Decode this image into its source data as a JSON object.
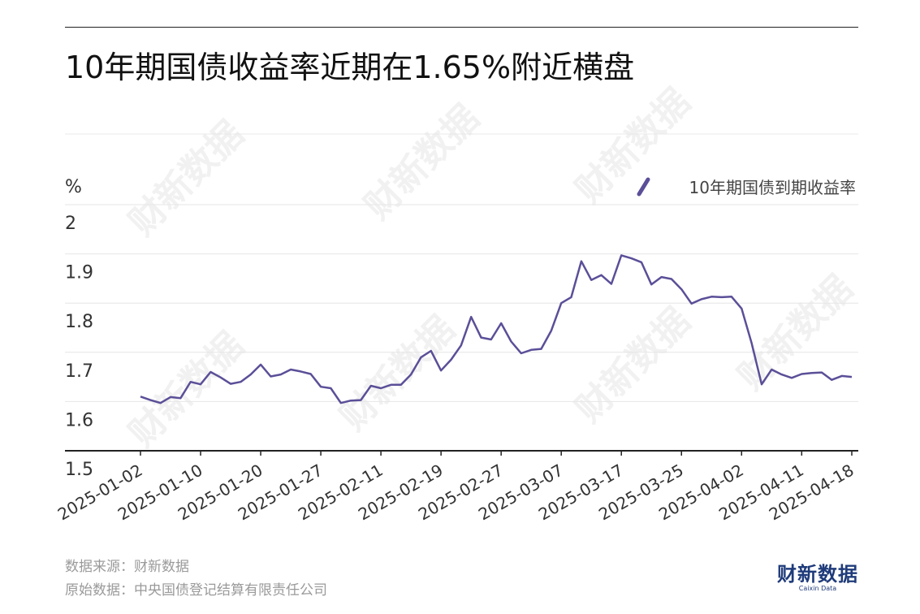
{
  "title": "10年期国债收益率近期在1.65%附近横盘",
  "footer": {
    "source": "数据来源：财新数据",
    "original_source": "原始数据：中央国债登记结算有限责任公司"
  },
  "brand": {
    "name_cn": "财新数据",
    "name_en": "Caixin Data",
    "color": "#1f3b7a"
  },
  "watermark_text": "财新数据",
  "chart_data": {
    "type": "line",
    "title": "10年期国债收益率近期在1.65%附近横盘",
    "ylabel": "%",
    "ylim": [
      1.5,
      2.0
    ],
    "yticks": [
      "1.5",
      "1.6",
      "1.7",
      "1.8",
      "1.9",
      "2"
    ],
    "xticks": [
      "2025-01-02",
      "2025-01-10",
      "2025-01-20",
      "2025-01-27",
      "2025-02-11",
      "2025-02-19",
      "2025-02-27",
      "2025-03-07",
      "2025-03-17",
      "2025-03-25",
      "2025-04-02",
      "2025-04-11",
      "2025-04-18"
    ],
    "grid": true,
    "legend_position": "top-right",
    "series": [
      {
        "name": "10年期国债到期收益率",
        "color": "#5b4f98",
        "x": [
          "2025-01-02",
          "2025-01-03",
          "2025-01-06",
          "2025-01-07",
          "2025-01-08",
          "2025-01-09",
          "2025-01-10",
          "2025-01-13",
          "2025-01-14",
          "2025-01-15",
          "2025-01-16",
          "2025-01-17",
          "2025-01-20",
          "2025-01-21",
          "2025-01-22",
          "2025-01-23",
          "2025-01-24",
          "2025-01-26",
          "2025-01-27",
          "2025-02-05",
          "2025-02-06",
          "2025-02-07",
          "2025-02-08",
          "2025-02-10",
          "2025-02-11",
          "2025-02-12",
          "2025-02-13",
          "2025-02-14",
          "2025-02-17",
          "2025-02-18",
          "2025-02-19",
          "2025-02-20",
          "2025-02-21",
          "2025-02-24",
          "2025-02-25",
          "2025-02-26",
          "2025-02-27",
          "2025-02-28",
          "2025-03-03",
          "2025-03-04",
          "2025-03-05",
          "2025-03-06",
          "2025-03-07",
          "2025-03-10",
          "2025-03-11",
          "2025-03-12",
          "2025-03-13",
          "2025-03-14",
          "2025-03-17",
          "2025-03-18",
          "2025-03-19",
          "2025-03-20",
          "2025-03-21",
          "2025-03-24",
          "2025-03-25",
          "2025-03-26",
          "2025-03-27",
          "2025-03-28",
          "2025-03-31",
          "2025-04-01",
          "2025-04-02",
          "2025-04-03",
          "2025-04-07",
          "2025-04-08",
          "2025-04-09",
          "2025-04-10",
          "2025-04-11",
          "2025-04-14",
          "2025-04-15",
          "2025-04-16",
          "2025-04-17",
          "2025-04-18"
        ],
        "values": [
          1.61,
          1.603,
          1.597,
          1.609,
          1.607,
          1.64,
          1.635,
          1.66,
          1.649,
          1.636,
          1.64,
          1.655,
          1.675,
          1.651,
          1.655,
          1.665,
          1.661,
          1.656,
          1.63,
          1.627,
          1.597,
          1.602,
          1.603,
          1.632,
          1.627,
          1.634,
          1.634,
          1.655,
          1.69,
          1.703,
          1.663,
          1.685,
          1.714,
          1.772,
          1.73,
          1.726,
          1.759,
          1.722,
          1.698,
          1.705,
          1.707,
          1.744,
          1.8,
          1.812,
          1.885,
          1.847,
          1.857,
          1.839,
          1.897,
          1.891,
          1.883,
          1.838,
          1.853,
          1.849,
          1.828,
          1.799,
          1.808,
          1.813,
          1.812,
          1.813,
          1.789,
          1.719,
          1.635,
          1.665,
          1.655,
          1.648,
          1.656,
          1.658,
          1.659,
          1.644,
          1.652,
          1.65
        ]
      }
    ]
  }
}
